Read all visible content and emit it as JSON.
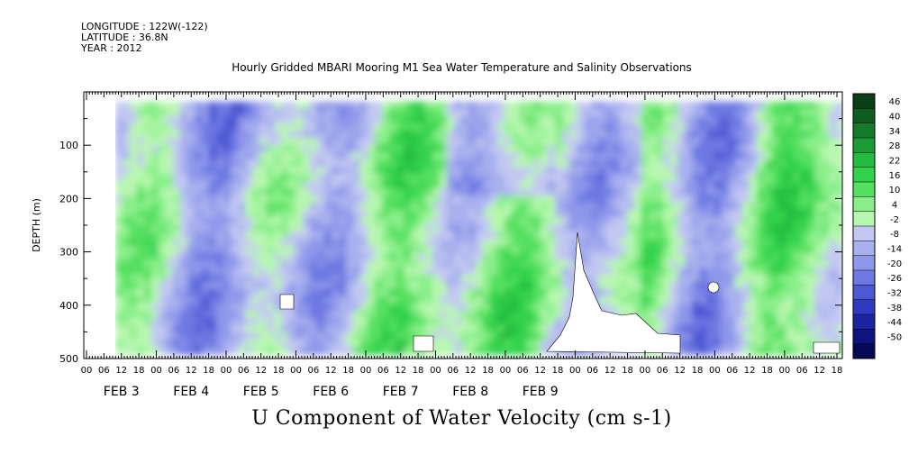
{
  "header": {
    "longitude": "LONGITUDE : 122W(-122)",
    "latitude": "LATITUDE : 36.8N",
    "year": "YEAR : 2012"
  },
  "chart_data": {
    "type": "heatmap",
    "title": "Hourly Gridded MBARI Mooring M1 Sea Water Temperature and Salinity Observations",
    "xlabel": "U Component of Water Velocity (cm s-1)",
    "ylabel": "DEPTH (m)",
    "y_ticks": [
      100,
      200,
      300,
      400,
      500
    ],
    "ylim": [
      500,
      0
    ],
    "x_hour_labels": [
      "00",
      "06",
      "12",
      "18",
      "00",
      "06",
      "12",
      "18",
      "00",
      "06",
      "12",
      "18",
      "00",
      "06",
      "12",
      "18",
      "00",
      "06",
      "12",
      "18",
      "00",
      "06",
      "12",
      "18",
      "00",
      "06",
      "12",
      "18",
      "00",
      "06",
      "12",
      "18",
      "00",
      "06",
      "12",
      "18",
      "00",
      "06",
      "12",
      "18",
      "00",
      "06",
      "12",
      "18"
    ],
    "x_day_labels": [
      "FEB 3",
      "FEB 4",
      "FEB 5",
      "FEB 6",
      "FEB 7",
      "FEB 8",
      "FEB 9"
    ],
    "colorbar": {
      "levels": [
        "46",
        "40",
        "34",
        "28",
        "22",
        "16",
        "10",
        "4",
        "-2",
        "-8",
        "-14",
        "-20",
        "-26",
        "-32",
        "-38",
        "-44",
        "-50"
      ],
      "colors": [
        "#0b3d17",
        "#0f5c22",
        "#157a2c",
        "#1b9b36",
        "#23bb40",
        "#33d24c",
        "#55e060",
        "#8aef8a",
        "#b8f7b0",
        "#c2c8f2",
        "#a8b0ee",
        "#8e97ea",
        "#6d78e2",
        "#4d58d4",
        "#2f3ac0",
        "#1c24a2",
        "#0f137e",
        "#040a55"
      ]
    },
    "field_description": "alternating bands of weak positive and negative velocity with depth and time"
  }
}
